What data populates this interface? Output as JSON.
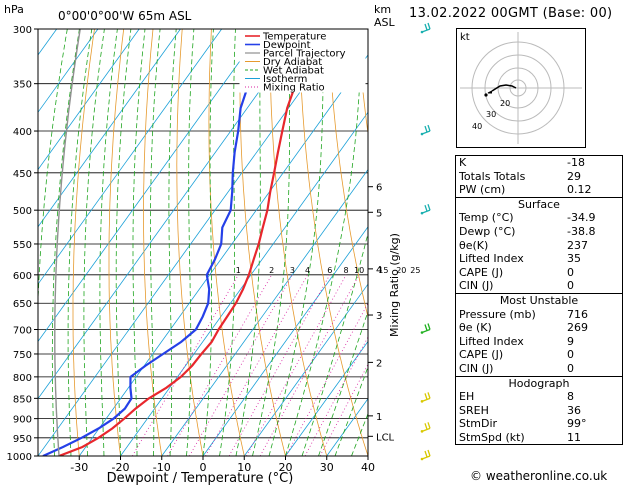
{
  "header": {
    "unit_left": "hPa",
    "location": "0°00'0°00'W 65m ASL",
    "unit_right_km": "km",
    "unit_right_asl": "ASL",
    "datetime": "13.02.2022 00GMT (Base: 00)"
  },
  "colors": {
    "temperature": "#e8272d",
    "dewpoint": "#2540e8",
    "parcel": "#909090",
    "dry_adiabat": "#e69a2e",
    "wet_adiabat": "#1fa51f",
    "isotherm": "#1aa0d8",
    "mixing_ratio": "#d81fa0",
    "wind_barb_high": "#1ab0b0",
    "wind_barb_mid": "#20b020",
    "wind_barb_low": "#d8c800"
  },
  "chart_data": {
    "type": "line",
    "title": "",
    "xlabel": "Dewpoint / Temperature (°C)",
    "ylabel": "hPa",
    "right_label": "Mixing Ratio (g/kg)",
    "xlim": [
      -40,
      40
    ],
    "ylim": [
      1000,
      300
    ],
    "pressure_ticks": [
      300,
      350,
      400,
      450,
      500,
      550,
      600,
      650,
      700,
      750,
      800,
      850,
      900,
      950,
      1000
    ],
    "temp_ticks": [
      -30,
      -20,
      -10,
      0,
      10,
      20,
      30,
      40
    ],
    "km_ticks": [
      {
        "label": "6",
        "p": 468
      },
      {
        "label": "5",
        "p": 503
      },
      {
        "label": "4",
        "p": 590
      },
      {
        "label": "3",
        "p": 672
      },
      {
        "label": "2",
        "p": 768
      },
      {
        "label": "1",
        "p": 893
      },
      {
        "label": "LCL",
        "p": 946
      }
    ],
    "mixing_ratio_labels": [
      "1",
      "2",
      "3",
      "4",
      "6",
      "8",
      "10",
      "15",
      "20",
      "25"
    ],
    "legend": [
      "Temperature",
      "Dewpoint",
      "Parcel Trajectory",
      "Dry Adiabat",
      "Wet Adiabat",
      "Isotherm",
      "Mixing Ratio"
    ],
    "legend_position": "top-left",
    "series": [
      {
        "name": "Temperature",
        "p": [
          1000,
          975,
          950,
          925,
          900,
          875,
          850,
          825,
          800,
          775,
          750,
          725,
          700,
          675,
          650,
          625,
          600,
          575,
          550,
          525,
          500,
          475,
          450,
          425,
          400,
          375,
          350,
          325,
          300
        ],
        "t": [
          -34.9,
          -30.8,
          -28.5,
          -26.8,
          -25.6,
          -24.6,
          -23.2,
          -20.8,
          -19.2,
          -18.4,
          -18.2,
          -17.8,
          -18.3,
          -18.5,
          -18.7,
          -19.4,
          -20.5,
          -22.0,
          -23.5,
          -25.4,
          -27.3,
          -29.8,
          -32.2,
          -34.8,
          -37.5,
          -40.3,
          -42.5,
          -46.2,
          -49.0
        ]
      },
      {
        "name": "Dewpoint",
        "p": [
          1000,
          975,
          950,
          925,
          900,
          875,
          850,
          825,
          800,
          775,
          750,
          725,
          700,
          675,
          650,
          625,
          600,
          575,
          550,
          525,
          500,
          475,
          450,
          425,
          400,
          375,
          350,
          325,
          300
        ],
        "t": [
          -38.8,
          -35.5,
          -32.6,
          -30.1,
          -28.2,
          -27.2,
          -27.4,
          -29.5,
          -31.4,
          -29.7,
          -27.5,
          -25.2,
          -23.8,
          -24.4,
          -25.4,
          -27.6,
          -30.7,
          -31.4,
          -32.6,
          -35.2,
          -36.2,
          -39.0,
          -42.2,
          -45.3,
          -48.2,
          -51.6,
          -53.9,
          -56.8,
          -59.0
        ]
      }
    ]
  },
  "hodograph": {
    "label": "kt",
    "ring_labels": [
      "20",
      "30",
      "40"
    ]
  },
  "table": {
    "basic": [
      {
        "label": "K",
        "value": "-18"
      },
      {
        "label": "Totals Totals",
        "value": "29"
      },
      {
        "label": "PW (cm)",
        "value": "0.12"
      }
    ],
    "surface": {
      "title": "Surface",
      "rows": [
        {
          "label": "Temp (°C)",
          "value": "-34.9"
        },
        {
          "label": "Dewp (°C)",
          "value": "-38.8"
        },
        {
          "label": "θe(K)",
          "value": "237"
        },
        {
          "label": "Lifted Index",
          "value": "35"
        },
        {
          "label": "CAPE (J)",
          "value": "0"
        },
        {
          "label": "CIN (J)",
          "value": "0"
        }
      ]
    },
    "unstable": {
      "title": "Most Unstable",
      "rows": [
        {
          "label": "Pressure (mb)",
          "value": "716"
        },
        {
          "label": "θe (K)",
          "value": "269"
        },
        {
          "label": "Lifted Index",
          "value": "9"
        },
        {
          "label": "CAPE (J)",
          "value": "0"
        },
        {
          "label": "CIN (J)",
          "value": "0"
        }
      ]
    },
    "hodograph": {
      "title": "Hodograph",
      "rows": [
        {
          "label": "EH",
          "value": "8"
        },
        {
          "label": "SREH",
          "value": "36"
        },
        {
          "label": "StmDir",
          "value": "99°"
        },
        {
          "label": "StmSpd (kt)",
          "value": "11"
        }
      ]
    }
  },
  "copyright": "© weatheronline.co.uk"
}
